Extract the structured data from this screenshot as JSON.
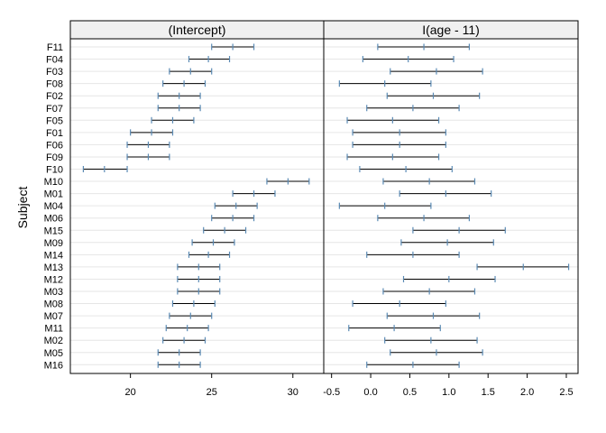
{
  "chart_data": {
    "type": "interval",
    "ylabel": "Subject",
    "subjects": [
      "F11",
      "F04",
      "F03",
      "F08",
      "F02",
      "F07",
      "F05",
      "F01",
      "F06",
      "F09",
      "F10",
      "M10",
      "M01",
      "M04",
      "M06",
      "M15",
      "M09",
      "M14",
      "M13",
      "M12",
      "M03",
      "M08",
      "M07",
      "M11",
      "M02",
      "M05",
      "M16"
    ],
    "panels": [
      {
        "title": "(Intercept)",
        "xlim": [
          16.3,
          31.9
        ],
        "ticks": [
          20,
          25,
          30
        ],
        "tick_labels": [
          "20",
          "25",
          "30"
        ],
        "intervals": [
          {
            "lower": 25.0,
            "est": 26.3,
            "upper": 27.6
          },
          {
            "lower": 23.6,
            "est": 24.8,
            "upper": 26.1
          },
          {
            "lower": 22.4,
            "est": 23.7,
            "upper": 25.0
          },
          {
            "lower": 22.0,
            "est": 23.3,
            "upper": 24.6
          },
          {
            "lower": 21.7,
            "est": 23.0,
            "upper": 24.3
          },
          {
            "lower": 21.7,
            "est": 23.0,
            "upper": 24.3
          },
          {
            "lower": 21.3,
            "est": 22.6,
            "upper": 23.9
          },
          {
            "lower": 20.0,
            "est": 21.3,
            "upper": 22.6
          },
          {
            "lower": 19.8,
            "est": 21.1,
            "upper": 22.4
          },
          {
            "lower": 19.8,
            "est": 21.1,
            "upper": 22.4
          },
          {
            "lower": 17.1,
            "est": 18.4,
            "upper": 19.8
          },
          {
            "lower": 28.4,
            "est": 29.7,
            "upper": 31.0
          },
          {
            "lower": 26.3,
            "est": 27.6,
            "upper": 28.9
          },
          {
            "lower": 25.2,
            "est": 26.5,
            "upper": 27.8
          },
          {
            "lower": 25.0,
            "est": 26.3,
            "upper": 27.6
          },
          {
            "lower": 24.5,
            "est": 25.8,
            "upper": 27.1
          },
          {
            "lower": 23.8,
            "est": 25.1,
            "upper": 26.4
          },
          {
            "lower": 23.6,
            "est": 24.8,
            "upper": 26.1
          },
          {
            "lower": 22.9,
            "est": 24.2,
            "upper": 25.5
          },
          {
            "lower": 22.9,
            "est": 24.2,
            "upper": 25.5
          },
          {
            "lower": 22.9,
            "est": 24.2,
            "upper": 25.5
          },
          {
            "lower": 22.6,
            "est": 23.9,
            "upper": 25.2
          },
          {
            "lower": 22.4,
            "est": 23.7,
            "upper": 25.0
          },
          {
            "lower": 22.2,
            "est": 23.5,
            "upper": 24.8
          },
          {
            "lower": 22.0,
            "est": 23.3,
            "upper": 24.6
          },
          {
            "lower": 21.7,
            "est": 23.0,
            "upper": 24.3
          },
          {
            "lower": 21.7,
            "est": 23.0,
            "upper": 24.3
          }
        ]
      },
      {
        "title": "I(age - 11)",
        "xlim": [
          -0.6,
          2.65
        ],
        "ticks": [
          -0.5,
          0.0,
          0.5,
          1.0,
          1.5,
          2.0,
          2.5
        ],
        "tick_labels": [
          "-0.5",
          "0.0",
          "0.5",
          "1.0",
          "1.5",
          "2.0",
          "2.5"
        ],
        "intervals": [
          {
            "lower": 0.09,
            "est": 0.68,
            "upper": 1.26
          },
          {
            "lower": -0.1,
            "est": 0.48,
            "upper": 1.06
          },
          {
            "lower": 0.25,
            "est": 0.84,
            "upper": 1.43
          },
          {
            "lower": -0.4,
            "est": 0.18,
            "upper": 0.77
          },
          {
            "lower": 0.21,
            "est": 0.8,
            "upper": 1.39
          },
          {
            "lower": -0.05,
            "est": 0.54,
            "upper": 1.13
          },
          {
            "lower": -0.3,
            "est": 0.28,
            "upper": 0.87
          },
          {
            "lower": -0.23,
            "est": 0.37,
            "upper": 0.96
          },
          {
            "lower": -0.23,
            "est": 0.37,
            "upper": 0.96
          },
          {
            "lower": -0.3,
            "est": 0.28,
            "upper": 0.87
          },
          {
            "lower": -0.14,
            "est": 0.45,
            "upper": 1.04
          },
          {
            "lower": 0.16,
            "est": 0.75,
            "upper": 1.33
          },
          {
            "lower": 0.37,
            "est": 0.96,
            "upper": 1.54
          },
          {
            "lower": -0.4,
            "est": 0.18,
            "upper": 0.77
          },
          {
            "lower": 0.09,
            "est": 0.68,
            "upper": 1.26
          },
          {
            "lower": 0.54,
            "est": 1.13,
            "upper": 1.72
          },
          {
            "lower": 0.39,
            "est": 0.98,
            "upper": 1.57
          },
          {
            "lower": -0.05,
            "est": 0.54,
            "upper": 1.13
          },
          {
            "lower": 1.36,
            "est": 1.95,
            "upper": 2.53
          },
          {
            "lower": 0.42,
            "est": 1.0,
            "upper": 1.59
          },
          {
            "lower": 0.16,
            "est": 0.75,
            "upper": 1.33
          },
          {
            "lower": -0.23,
            "est": 0.37,
            "upper": 0.96
          },
          {
            "lower": 0.21,
            "est": 0.8,
            "upper": 1.39
          },
          {
            "lower": -0.28,
            "est": 0.3,
            "upper": 0.89
          },
          {
            "lower": 0.18,
            "est": 0.77,
            "upper": 1.36
          },
          {
            "lower": 0.25,
            "est": 0.84,
            "upper": 1.43
          },
          {
            "lower": -0.05,
            "est": 0.54,
            "upper": 1.13
          }
        ]
      }
    ],
    "colors": {
      "interval": "#000000",
      "point": "#5a8ab4",
      "strip": "#f0f0f0",
      "grid": "#e6e6e6",
      "border": "#000000"
    },
    "grid": true
  }
}
